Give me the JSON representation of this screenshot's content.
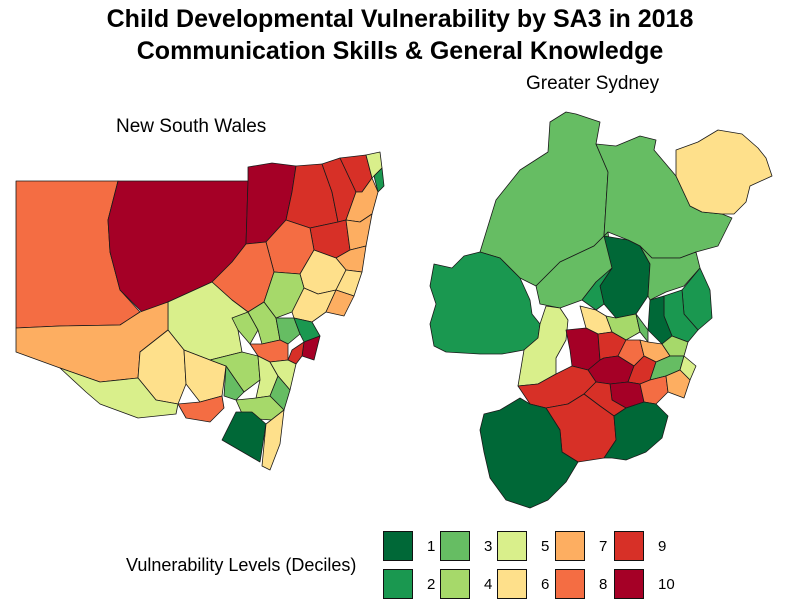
{
  "title": {
    "line1": "Child Developmental Vulnerability by SA3 in 2018",
    "line2": "Communication Skills & General Knowledge"
  },
  "maps": {
    "nsw_label": "New South Wales",
    "sydney_label": "Greater Sydney"
  },
  "legend": {
    "title": "Vulnerability Levels (Deciles)",
    "items": [
      {
        "label": "1",
        "color": "#006837"
      },
      {
        "label": "2",
        "color": "#1a9850"
      },
      {
        "label": "3",
        "color": "#66bd63"
      },
      {
        "label": "4",
        "color": "#a6d96a"
      },
      {
        "label": "5",
        "color": "#d9ef8b"
      },
      {
        "label": "6",
        "color": "#fee08b"
      },
      {
        "label": "7",
        "color": "#fdae61"
      },
      {
        "label": "8",
        "color": "#f46d43"
      },
      {
        "label": "9",
        "color": "#d73027"
      },
      {
        "label": "10",
        "color": "#a50026"
      }
    ]
  }
}
